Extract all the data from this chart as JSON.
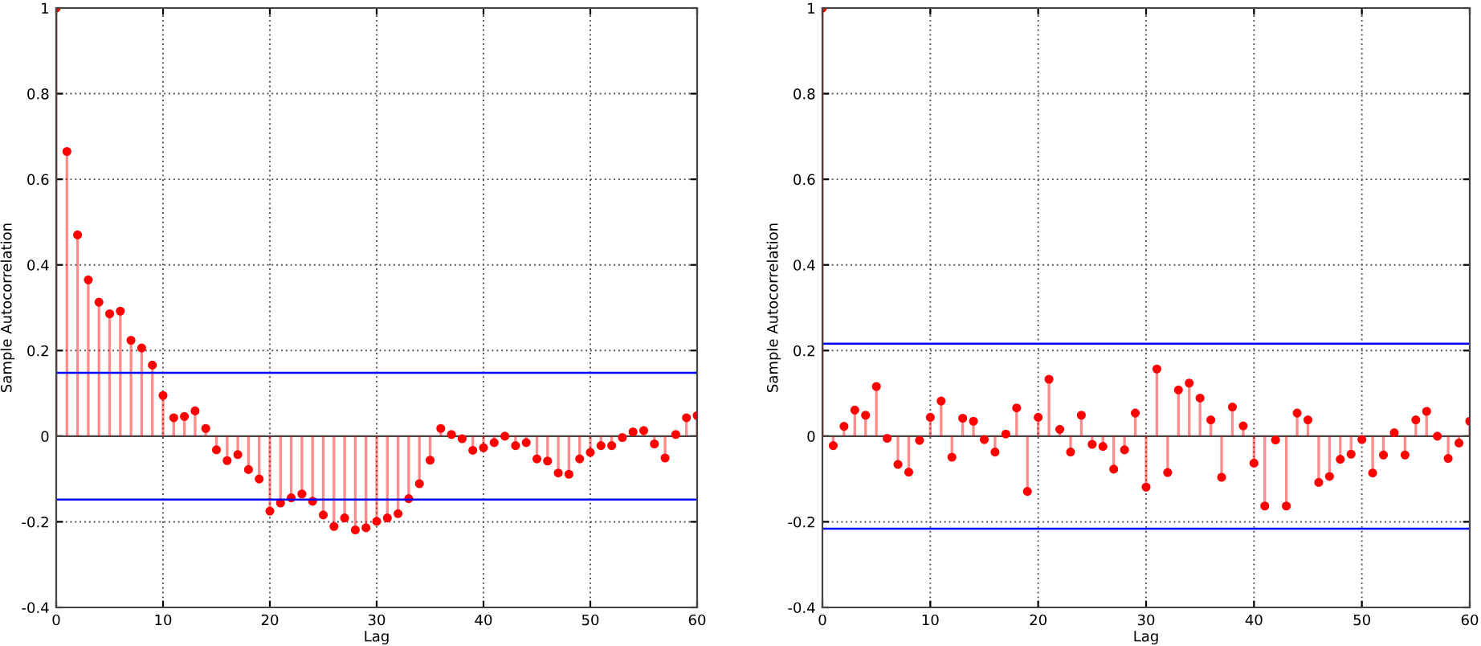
{
  "chart_data": [
    {
      "type": "lollipop",
      "xlabel": "Lag",
      "ylabel": "Sample Autocorrelation",
      "x": [
        0,
        1,
        2,
        3,
        4,
        5,
        6,
        7,
        8,
        9,
        10,
        11,
        12,
        13,
        14,
        15,
        16,
        17,
        18,
        19,
        20,
        21,
        22,
        23,
        24,
        25,
        26,
        27,
        28,
        29,
        30,
        31,
        32,
        33,
        34,
        35,
        36,
        37,
        38,
        39,
        40,
        41,
        42,
        43,
        44,
        45,
        46,
        47,
        48,
        49,
        50,
        51,
        52,
        53,
        54,
        55,
        56,
        57,
        58,
        59,
        60
      ],
      "series": [
        {
          "color": "#ff0000",
          "values": [
            1,
            0.665,
            0.47,
            0.365,
            0.313,
            0.286,
            0.292,
            0.224,
            0.206,
            0.166,
            0.095,
            0.043,
            0.046,
            0.059,
            0.018,
            -0.032,
            -0.057,
            -0.043,
            -0.078,
            -0.1,
            -0.175,
            -0.156,
            -0.144,
            -0.135,
            -0.152,
            -0.184,
            -0.211,
            -0.191,
            -0.219,
            -0.214,
            -0.199,
            -0.191,
            -0.181,
            -0.146,
            -0.111,
            -0.056,
            0.018,
            0.004,
            -0.006,
            -0.033,
            -0.027,
            -0.015,
            0,
            -0.022,
            -0.015,
            -0.053,
            -0.058,
            -0.086,
            -0.089,
            -0.053,
            -0.038,
            -0.022,
            -0.022,
            -0.003,
            0.01,
            0.013,
            -0.018,
            -0.051,
            0.004,
            0.043,
            0.048
          ]
        }
      ],
      "ref_lines": [
        {
          "axis": "y",
          "value": 0.148,
          "color": "#0000ff"
        },
        {
          "axis": "y",
          "value": -0.148,
          "color": "#0000ff"
        }
      ],
      "xlim": [
        0,
        60
      ],
      "xticks": [
        0,
        10,
        20,
        30,
        40,
        50,
        60
      ],
      "ylim": [
        -0.4,
        1
      ],
      "yticks": [
        -0.4,
        -0.2,
        0,
        0.2,
        0.4,
        0.6,
        0.8,
        1
      ],
      "grid": true,
      "marker": "circle"
    },
    {
      "type": "lollipop",
      "xlabel": "Lag",
      "ylabel": "Sample Autocorrelation",
      "x": [
        0,
        1,
        2,
        3,
        4,
        5,
        6,
        7,
        8,
        9,
        10,
        11,
        12,
        13,
        14,
        15,
        16,
        17,
        18,
        19,
        20,
        21,
        22,
        23,
        24,
        25,
        26,
        27,
        28,
        29,
        30,
        31,
        32,
        33,
        34,
        35,
        36,
        37,
        38,
        39,
        40,
        41,
        42,
        43,
        44,
        45,
        46,
        47,
        48,
        49,
        50,
        51,
        52,
        53,
        54,
        55,
        56,
        57,
        58,
        59,
        60
      ],
      "series": [
        {
          "color": "#ff0000",
          "values": [
            1,
            -0.022,
            0.023,
            0.061,
            0.049,
            0.116,
            -0.005,
            -0.066,
            -0.084,
            -0.01,
            0.044,
            0.082,
            -0.049,
            0.042,
            0.035,
            -0.008,
            -0.037,
            0.005,
            0.066,
            -0.129,
            0.044,
            0.133,
            0.016,
            -0.037,
            0.049,
            -0.019,
            -0.024,
            -0.077,
            -0.032,
            0.054,
            -0.119,
            0.157,
            -0.085,
            0.108,
            0.124,
            0.089,
            0.038,
            -0.096,
            0.068,
            0.024,
            -0.063,
            -0.163,
            -0.009,
            -0.163,
            0.054,
            0.038,
            -0.108,
            -0.094,
            -0.054,
            -0.042,
            -0.008,
            -0.086,
            -0.044,
            0.008,
            -0.044,
            0.038,
            0.058,
            0,
            -0.052,
            -0.016,
            0.035
          ]
        }
      ],
      "ref_lines": [
        {
          "axis": "y",
          "value": 0.216,
          "color": "#0000ff"
        },
        {
          "axis": "y",
          "value": -0.216,
          "color": "#0000ff"
        }
      ],
      "xlim": [
        0,
        60
      ],
      "xticks": [
        0,
        10,
        20,
        30,
        40,
        50,
        60
      ],
      "ylim": [
        -0.4,
        1
      ],
      "yticks": [
        -0.4,
        -0.2,
        0,
        0.2,
        0.4,
        0.6,
        0.8,
        1
      ],
      "grid": true,
      "marker": "circle"
    }
  ]
}
